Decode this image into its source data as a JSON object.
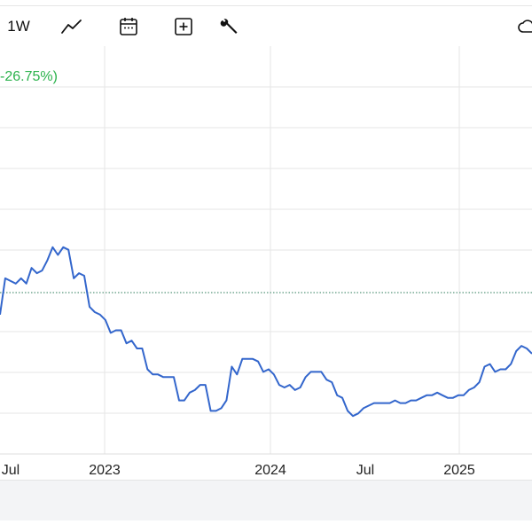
{
  "toolbar": {
    "timeframe_label": "1W",
    "icons": [
      "line-chart-icon",
      "calendar-icon",
      "add-box-icon",
      "wrench-icon",
      "cloud-icon"
    ]
  },
  "header": {
    "change_text": "-26.75%)"
  },
  "colors": {
    "line": "#3366cc",
    "change_positive": "#2bb24c",
    "reference_line": "#2e7d5b",
    "grid": "#e6e6e6"
  },
  "chart_data": {
    "type": "line",
    "x_tick_labels": [
      "Jul",
      "2023",
      "2024",
      "Jul",
      "2025"
    ],
    "reference_line": "dotted",
    "grid": true,
    "series": [
      {
        "values": [
          0.42,
          0.56,
          0.55,
          0.54,
          0.56,
          0.54,
          0.6,
          0.58,
          0.59,
          0.63,
          0.68,
          0.65,
          0.68,
          0.67,
          0.56,
          0.58,
          0.57,
          0.45,
          0.43,
          0.42,
          0.4,
          0.35,
          0.36,
          0.36,
          0.31,
          0.32,
          0.29,
          0.29,
          0.21,
          0.19,
          0.19,
          0.18,
          0.18,
          0.18,
          0.09,
          0.09,
          0.12,
          0.13,
          0.15,
          0.15,
          0.05,
          0.05,
          0.06,
          0.09,
          0.22,
          0.19,
          0.25,
          0.25,
          0.25,
          0.24,
          0.2,
          0.21,
          0.19,
          0.15,
          0.14,
          0.15,
          0.13,
          0.14,
          0.18,
          0.2,
          0.2,
          0.2,
          0.17,
          0.16,
          0.11,
          0.1,
          0.05,
          0.03,
          0.04,
          0.06,
          0.07,
          0.08,
          0.08,
          0.08,
          0.08,
          0.09,
          0.08,
          0.08,
          0.09,
          0.09,
          0.1,
          0.11,
          0.11,
          0.12,
          0.11,
          0.1,
          0.1,
          0.11,
          0.11,
          0.13,
          0.14,
          0.16,
          0.22,
          0.23,
          0.2,
          0.21,
          0.21,
          0.23,
          0.28,
          0.3,
          0.29,
          0.27
        ]
      }
    ]
  }
}
